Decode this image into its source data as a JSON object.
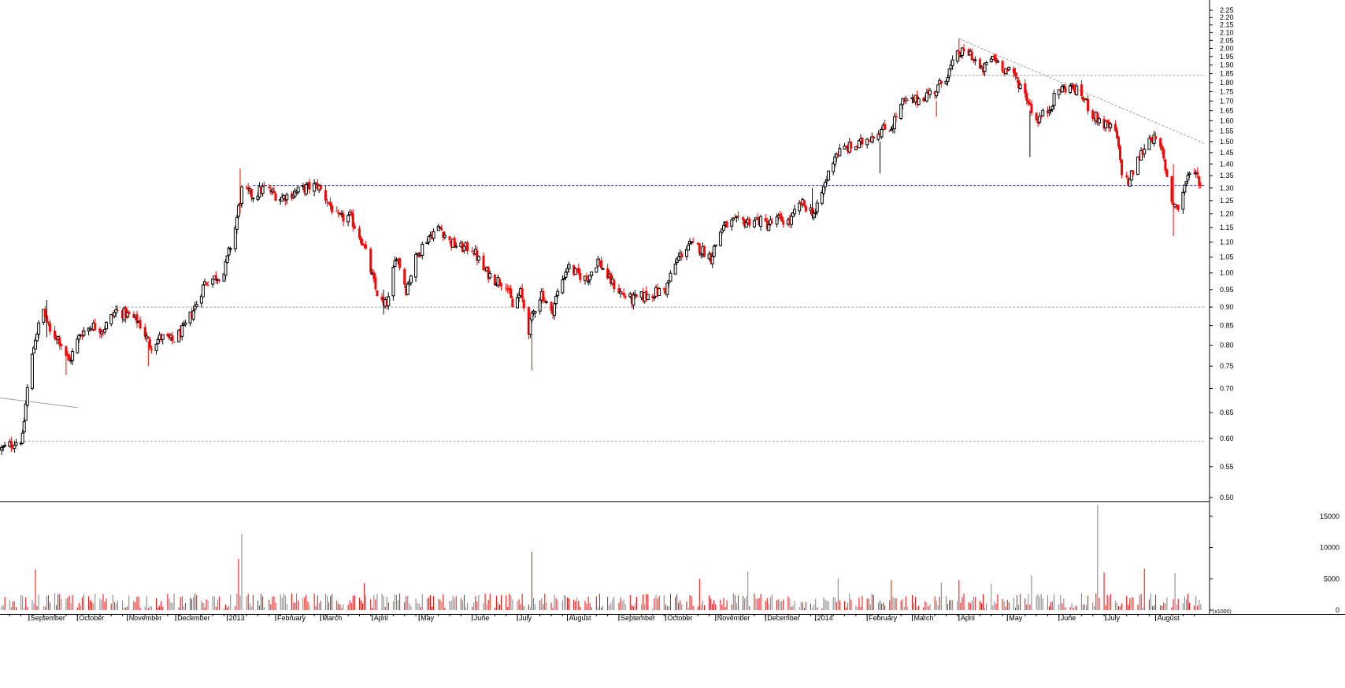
{
  "chart_data": {
    "type": "candlestick",
    "price_axis": {
      "ylim": [
        0.5,
        2.25
      ],
      "scale": "log",
      "ticks": [
        "2.25",
        "2.20",
        "2.15",
        "2.10",
        "2.05",
        "2.00",
        "1.95",
        "1.90",
        "1.85",
        "1.80",
        "1.75",
        "1.70",
        "1.65",
        "1.60",
        "1.55",
        "1.50",
        "1.45",
        "1.40",
        "1.35",
        "1.30",
        "1.25",
        "1.20",
        "1.15",
        "1.10",
        "1.05",
        "1.00",
        "0.95",
        "0.90",
        "0.85",
        "0.80",
        "0.75",
        "0.70",
        "0.65",
        "0.60",
        "0.55",
        "0.50"
      ]
    },
    "volume_axis": {
      "ylim": [
        0,
        17000
      ],
      "ticks": [
        "15000",
        "10000",
        "5000",
        "0"
      ],
      "unit_label": "(x1000)"
    },
    "x_axis": {
      "range": [
        "2012-08-14",
        "2014-09-01"
      ],
      "month_labels": [
        {
          "label": "September",
          "date": "2012-09-01"
        },
        {
          "label": "October",
          "date": "2012-10-01"
        },
        {
          "label": "November",
          "date": "2012-11-01"
        },
        {
          "label": "December",
          "date": "2012-12-01"
        },
        {
          "label": "2013",
          "date": "2013-01-02"
        },
        {
          "label": "February",
          "date": "2013-02-01"
        },
        {
          "label": "March",
          "date": "2013-03-01"
        },
        {
          "label": "April",
          "date": "2013-04-02"
        },
        {
          "label": "May",
          "date": "2013-05-01"
        },
        {
          "label": "June",
          "date": "2013-06-03"
        },
        {
          "label": "July",
          "date": "2013-07-01"
        },
        {
          "label": "August",
          "date": "2013-08-01"
        },
        {
          "label": "September",
          "date": "2013-09-02"
        },
        {
          "label": "October",
          "date": "2013-10-01"
        },
        {
          "label": "November",
          "date": "2013-11-01"
        },
        {
          "label": "December",
          "date": "2013-12-02"
        },
        {
          "label": "2014",
          "date": "2014-01-02"
        },
        {
          "label": "February",
          "date": "2014-02-03"
        },
        {
          "label": "March",
          "date": "2014-03-03"
        },
        {
          "label": "April",
          "date": "2014-04-01"
        },
        {
          "label": "May",
          "date": "2014-05-01"
        },
        {
          "label": "June",
          "date": "2014-06-02"
        },
        {
          "label": "July",
          "date": "2014-07-01"
        },
        {
          "label": "August",
          "date": "2014-08-01"
        }
      ]
    },
    "price_series": [
      [
        "2012-08-15",
        0.58
      ],
      [
        "2012-08-28",
        0.6
      ],
      [
        "2012-08-31",
        0.7
      ],
      [
        "2012-09-05",
        0.82
      ],
      [
        "2012-09-10",
        0.89
      ],
      [
        "2012-09-14",
        0.83
      ],
      [
        "2012-09-19",
        0.82
      ],
      [
        "2012-09-26",
        0.76
      ],
      [
        "2012-10-03",
        0.83
      ],
      [
        "2012-10-10",
        0.85
      ],
      [
        "2012-10-17",
        0.84
      ],
      [
        "2012-10-25",
        0.89
      ],
      [
        "2012-10-31",
        0.88
      ],
      [
        "2012-11-08",
        0.86
      ],
      [
        "2012-11-15",
        0.8
      ],
      [
        "2012-11-22",
        0.82
      ],
      [
        "2012-11-29",
        0.81
      ],
      [
        "2012-12-06",
        0.84
      ],
      [
        "2012-12-13",
        0.9
      ],
      [
        "2012-12-19",
        0.97
      ],
      [
        "2012-12-31",
        1.0
      ],
      [
        "2013-01-07",
        1.15
      ],
      [
        "2013-01-11",
        1.29
      ],
      [
        "2013-01-18",
        1.27
      ],
      [
        "2013-01-25",
        1.3
      ],
      [
        "2013-02-04",
        1.26
      ],
      [
        "2013-02-12",
        1.28
      ],
      [
        "2013-02-20",
        1.3
      ],
      [
        "2013-02-27",
        1.31
      ],
      [
        "2013-03-05",
        1.25
      ],
      [
        "2013-03-12",
        1.18
      ],
      [
        "2013-03-19",
        1.19
      ],
      [
        "2013-03-27",
        1.1
      ],
      [
        "2013-04-04",
        0.95
      ],
      [
        "2013-04-09",
        0.9
      ],
      [
        "2013-04-12",
        0.92
      ],
      [
        "2013-04-17",
        1.06
      ],
      [
        "2013-04-23",
        0.95
      ],
      [
        "2013-04-30",
        1.06
      ],
      [
        "2013-05-07",
        1.12
      ],
      [
        "2013-05-14",
        1.15
      ],
      [
        "2013-05-20",
        1.1
      ],
      [
        "2013-05-27",
        1.08
      ],
      [
        "2013-06-03",
        1.08
      ],
      [
        "2013-06-10",
        1.01
      ],
      [
        "2013-06-17",
        0.98
      ],
      [
        "2013-06-24",
        0.97
      ],
      [
        "2013-06-28",
        0.9
      ],
      [
        "2013-07-03",
        0.94
      ],
      [
        "2013-07-08",
        0.84
      ],
      [
        "2013-07-12",
        0.9
      ],
      [
        "2013-07-16",
        0.94
      ],
      [
        "2013-07-22",
        0.88
      ],
      [
        "2013-07-26",
        0.94
      ],
      [
        "2013-08-01",
        1.02
      ],
      [
        "2013-08-06",
        1.0
      ],
      [
        "2013-08-13",
        0.98
      ],
      [
        "2013-08-20",
        1.04
      ],
      [
        "2013-08-27",
        0.98
      ],
      [
        "2013-09-03",
        0.94
      ],
      [
        "2013-09-10",
        0.92
      ],
      [
        "2013-09-17",
        0.93
      ],
      [
        "2013-09-24",
        0.94
      ],
      [
        "2013-10-01",
        0.95
      ],
      [
        "2013-10-08",
        1.04
      ],
      [
        "2013-10-15",
        1.09
      ],
      [
        "2013-10-22",
        1.08
      ],
      [
        "2013-10-29",
        1.05
      ],
      [
        "2013-11-05",
        1.15
      ],
      [
        "2013-11-12",
        1.17
      ],
      [
        "2013-11-19",
        1.17
      ],
      [
        "2013-11-26",
        1.18
      ],
      [
        "2013-12-03",
        1.16
      ],
      [
        "2013-12-10",
        1.18
      ],
      [
        "2013-12-17",
        1.17
      ],
      [
        "2013-12-24",
        1.24
      ],
      [
        "2014-01-02",
        1.2
      ],
      [
        "2014-01-07",
        1.3
      ],
      [
        "2014-01-14",
        1.44
      ],
      [
        "2014-01-21",
        1.47
      ],
      [
        "2014-01-28",
        1.48
      ],
      [
        "2014-02-04",
        1.52
      ],
      [
        "2014-02-11",
        1.55
      ],
      [
        "2014-02-18",
        1.57
      ],
      [
        "2014-02-25",
        1.69
      ],
      [
        "2014-03-04",
        1.7
      ],
      [
        "2014-03-11",
        1.73
      ],
      [
        "2014-03-18",
        1.76
      ],
      [
        "2014-03-25",
        1.85
      ],
      [
        "2014-04-01",
        1.97
      ],
      [
        "2014-04-08",
        1.97
      ],
      [
        "2014-04-15",
        1.86
      ],
      [
        "2014-04-22",
        1.95
      ],
      [
        "2014-04-29",
        1.88
      ],
      [
        "2014-05-06",
        1.83
      ],
      [
        "2014-05-13",
        1.72
      ],
      [
        "2014-05-19",
        1.6
      ],
      [
        "2014-05-26",
        1.65
      ],
      [
        "2014-06-02",
        1.76
      ],
      [
        "2014-06-09",
        1.78
      ],
      [
        "2014-06-16",
        1.73
      ],
      [
        "2014-06-23",
        1.63
      ],
      [
        "2014-06-30",
        1.58
      ],
      [
        "2014-07-07",
        1.55
      ],
      [
        "2014-07-11",
        1.37
      ],
      [
        "2014-07-15",
        1.32
      ],
      [
        "2014-07-22",
        1.43
      ],
      [
        "2014-07-29",
        1.53
      ],
      [
        "2014-08-05",
        1.45
      ],
      [
        "2014-08-11",
        1.25
      ],
      [
        "2014-08-15",
        1.22
      ],
      [
        "2014-08-20",
        1.33
      ],
      [
        "2014-08-25",
        1.38
      ],
      [
        "2014-08-29",
        1.31
      ]
    ],
    "spikes": [
      {
        "date": "2012-09-12",
        "high": 0.92,
        "low": 0.82,
        "dir": "up"
      },
      {
        "date": "2012-09-24",
        "high": 0.8,
        "low": 0.73,
        "dir": "down"
      },
      {
        "date": "2012-11-14",
        "high": 0.81,
        "low": 0.75,
        "dir": "down"
      },
      {
        "date": "2013-01-10",
        "high": 1.38,
        "low": 1.2,
        "dir": "down"
      },
      {
        "date": "2013-04-09",
        "high": 0.95,
        "low": 0.88,
        "dir": "up"
      },
      {
        "date": "2013-07-10",
        "high": 0.83,
        "low": 0.74,
        "dir": "down"
      },
      {
        "date": "2013-12-31",
        "high": 1.3,
        "low": 1.18,
        "dir": "up"
      },
      {
        "date": "2014-02-11",
        "high": 1.5,
        "low": 1.36,
        "dir": "up"
      },
      {
        "date": "2014-03-18",
        "high": 1.7,
        "low": 1.62,
        "dir": "down"
      },
      {
        "date": "2014-04-01",
        "high": 2.06,
        "low": 1.92,
        "dir": "down"
      },
      {
        "date": "2014-05-15",
        "high": 1.65,
        "low": 1.43,
        "dir": "up"
      },
      {
        "date": "2014-08-12",
        "high": 1.4,
        "low": 1.12,
        "dir": "down"
      }
    ],
    "volume_highlights": [
      [
        "2012-09-05",
        6500
      ],
      [
        "2013-01-11",
        12200
      ],
      [
        "2013-01-09",
        8200
      ],
      [
        "2013-07-10",
        9300
      ],
      [
        "2014-06-26",
        16800
      ],
      [
        "2014-07-25",
        6600
      ],
      [
        "2014-08-13",
        5900
      ],
      [
        "2013-03-28",
        4300
      ],
      [
        "2013-10-22",
        5000
      ],
      [
        "2013-11-21",
        6200
      ],
      [
        "2014-01-16",
        5100
      ],
      [
        "2014-02-18",
        4800
      ],
      [
        "2014-03-21",
        4400
      ],
      [
        "2014-04-01",
        4800
      ],
      [
        "2014-04-21",
        4200
      ],
      [
        "2014-05-16",
        5600
      ],
      [
        "2014-06-30",
        6000
      ]
    ],
    "reference_lines": [
      {
        "style": "blue-dashed",
        "value": 1.31,
        "from": "2013-01-18",
        "to": "2014-09-01"
      },
      {
        "style": "grey-dashed",
        "value": 0.9,
        "from": "2012-10-22",
        "to": "2014-09-01"
      },
      {
        "style": "grey-dashed",
        "value": 0.595,
        "from": "2012-08-29",
        "to": "2014-09-01"
      },
      {
        "style": "grey-dashed",
        "value": 1.84,
        "from": "2014-03-28",
        "to": "2014-09-01"
      }
    ],
    "trend_lines": [
      {
        "style": "grey-dashed",
        "from": [
          "2014-04-01",
          2.06
        ],
        "to": [
          "2014-09-01",
          1.49
        ]
      },
      {
        "style": "grey-solid",
        "from": [
          "2012-08-14",
          0.68
        ],
        "to": [
          "2012-10-01",
          0.66
        ]
      }
    ],
    "colors": {
      "up": "#000000",
      "down": "#ff0000",
      "volume_up": "#808080",
      "volume_down": "#ff0000",
      "ref_blue": "#2020c0",
      "ref_grey": "#a0a0a0"
    },
    "grid": false,
    "legend": "none"
  }
}
